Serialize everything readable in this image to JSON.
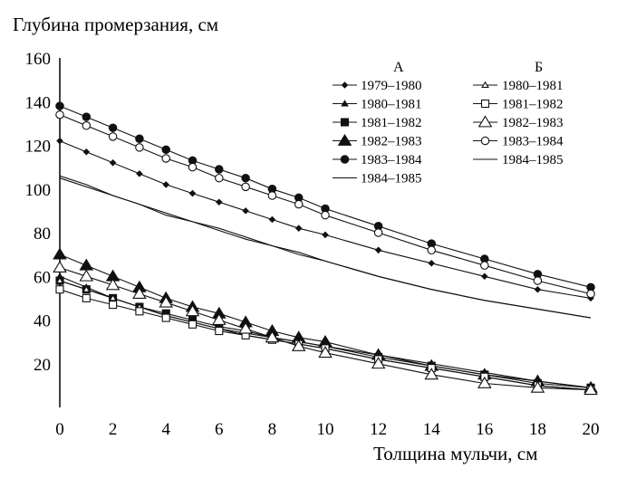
{
  "chart_data": {
    "type": "line",
    "ylabel": "Глубина промерзания, см",
    "xlabel": "Толщина мульчи, см",
    "xlim": [
      0,
      20
    ],
    "ylim": [
      0,
      160
    ],
    "x_ticks": [
      0,
      2,
      4,
      6,
      8,
      10,
      12,
      14,
      16,
      18,
      20
    ],
    "y_ticks": [
      20,
      40,
      60,
      80,
      100,
      120,
      140,
      160
    ],
    "grid": false,
    "legend_position": "top-right",
    "legend_groups": [
      "А",
      "Б"
    ],
    "x": [
      0,
      1,
      2,
      3,
      4,
      5,
      6,
      7,
      8,
      9,
      10,
      12,
      14,
      16,
      18,
      20
    ],
    "series": [
      {
        "group": "А",
        "name": "1979–1980",
        "marker": "diamond-filled",
        "values": [
          122,
          117,
          112,
          107,
          102,
          98,
          94,
          90,
          86,
          82,
          79,
          72,
          66,
          60,
          54,
          50
        ]
      },
      {
        "group": "А",
        "name": "1980–1981",
        "marker": "small-triangle-filled",
        "values": [
          60,
          55,
          50,
          46,
          42,
          39,
          36,
          34,
          32,
          30,
          28,
          24,
          20,
          16,
          12,
          9
        ]
      },
      {
        "group": "А",
        "name": "1981–1982",
        "marker": "square-filled",
        "values": [
          58,
          54,
          50,
          46,
          43,
          40,
          37,
          35,
          32,
          30,
          28,
          23,
          19,
          15,
          11,
          9
        ]
      },
      {
        "group": "А",
        "name": "1982–1983",
        "marker": "triangle-filled",
        "values": [
          70,
          65,
          60,
          55,
          50,
          46,
          43,
          39,
          35,
          32,
          30,
          24,
          19,
          15,
          12,
          9
        ]
      },
      {
        "group": "А",
        "name": "1983–1984",
        "marker": "circle-filled",
        "values": [
          138,
          133,
          128,
          123,
          118,
          113,
          109,
          105,
          100,
          96,
          91,
          83,
          75,
          68,
          61,
          55
        ]
      },
      {
        "group": "А",
        "name": "1984–1985",
        "marker": "none",
        "values": [
          106,
          102,
          97,
          93,
          89,
          85,
          82,
          78,
          74,
          71,
          67,
          60,
          54,
          49,
          45,
          41
        ]
      },
      {
        "group": "Б",
        "name": "1980–1981",
        "marker": "small-triangle-open",
        "values": [
          58,
          54,
          50,
          46,
          42,
          39,
          36,
          33,
          31,
          29,
          27,
          22,
          18,
          14,
          10,
          8
        ]
      },
      {
        "group": "Б",
        "name": "1981–1982",
        "marker": "square-open",
        "values": [
          54,
          50,
          47,
          44,
          41,
          38,
          35,
          33,
          31,
          29,
          27,
          22,
          18,
          14,
          10,
          8
        ]
      },
      {
        "group": "Б",
        "name": "1982–1983",
        "marker": "triangle-open",
        "values": [
          64,
          60,
          56,
          52,
          48,
          44,
          40,
          36,
          32,
          28,
          25,
          20,
          15,
          11,
          9,
          8
        ]
      },
      {
        "group": "Б",
        "name": "1983–1984",
        "marker": "circle-open",
        "values": [
          134,
          129,
          124,
          119,
          114,
          110,
          105,
          101,
          97,
          93,
          88,
          80,
          72,
          65,
          58,
          52
        ]
      },
      {
        "group": "Б",
        "name": "1984–1985",
        "marker": "none",
        "values": [
          105,
          101,
          97,
          93,
          88,
          85,
          81,
          77,
          74,
          70,
          67,
          60,
          54,
          49,
          45,
          41
        ]
      }
    ]
  }
}
